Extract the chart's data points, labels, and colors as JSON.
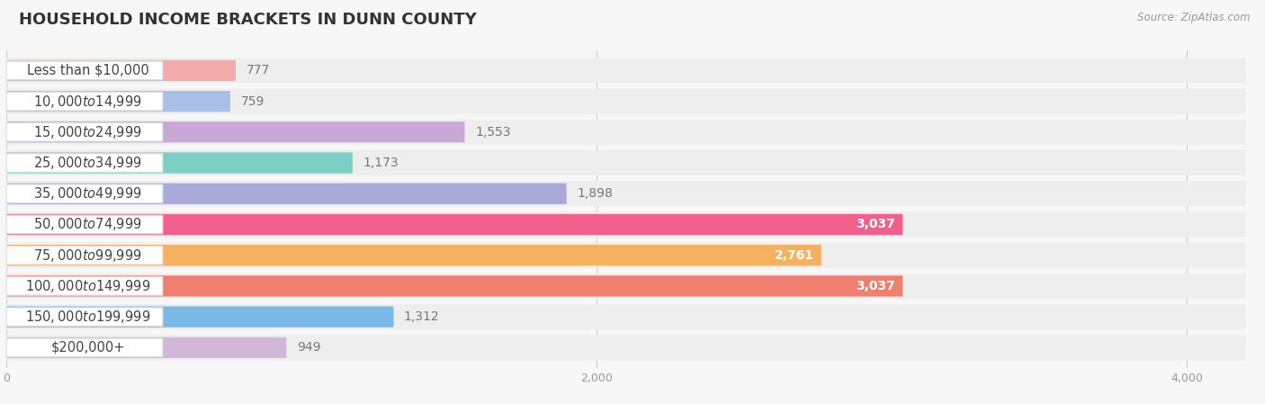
{
  "title": "HOUSEHOLD INCOME BRACKETS IN DUNN COUNTY",
  "source": "Source: ZipAtlas.com",
  "categories": [
    "Less than $10,000",
    "$10,000 to $14,999",
    "$15,000 to $24,999",
    "$25,000 to $34,999",
    "$35,000 to $49,999",
    "$50,000 to $74,999",
    "$75,000 to $99,999",
    "$100,000 to $149,999",
    "$150,000 to $199,999",
    "$200,000+"
  ],
  "values": [
    777,
    759,
    1553,
    1173,
    1898,
    3037,
    2761,
    3037,
    1312,
    949
  ],
  "bar_colors": [
    "#F2AAAA",
    "#AABFE8",
    "#C9A8D8",
    "#7DCEC4",
    "#AAAAD8",
    "#F0608A",
    "#F5B060",
    "#EF8070",
    "#7AB8E8",
    "#D0B8D8"
  ],
  "value_inside": [
    false,
    false,
    false,
    false,
    false,
    true,
    true,
    true,
    false,
    false
  ],
  "xlim": [
    0,
    4200
  ],
  "bg_color": "#f7f7f7",
  "bar_bg_color": "#ebebeb",
  "row_bg_color": "#f0f0f0",
  "title_fontsize": 13,
  "label_fontsize": 10.5,
  "value_fontsize": 10
}
